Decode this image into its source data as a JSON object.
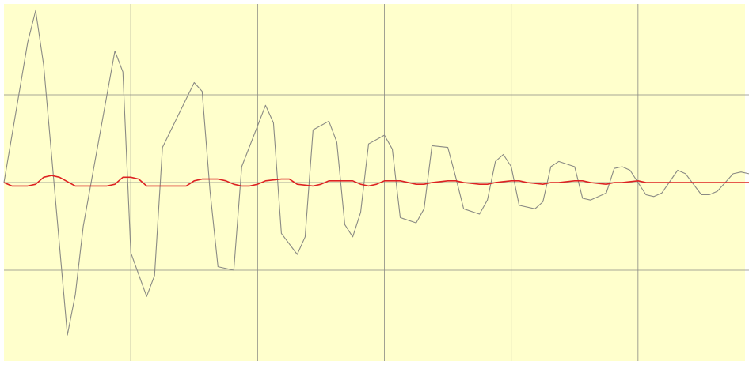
{
  "chart_data": {
    "type": "line",
    "title": "",
    "xlabel": "",
    "ylabel": "",
    "xlim": [
      0,
      94
    ],
    "ylim": [
      -1.0,
      1.0
    ],
    "grid": true,
    "legend": "none",
    "colors": {
      "background": "#ffffcc",
      "grid": "#8a8a84",
      "series": [
        "#8a8a84",
        "#dd2222"
      ]
    },
    "series": [
      {
        "x": [
          0,
          3,
          4,
          5,
          8,
          9,
          10,
          14,
          15,
          16,
          18,
          19,
          20,
          24,
          25,
          26,
          27,
          29,
          30,
          33,
          34,
          35,
          37,
          38,
          39,
          41,
          42,
          43,
          44,
          45,
          46,
          48,
          49,
          50,
          52,
          53,
          54,
          56,
          57,
          58,
          60,
          61,
          62,
          63,
          64,
          65,
          67,
          68,
          69,
          70,
          72,
          73,
          74,
          76,
          77,
          78,
          79,
          81,
          82,
          83,
          85,
          86,
          88,
          89,
          90,
          92,
          93,
          94
        ],
        "values": [
          0.0,
          0.8,
          0.98,
          0.67,
          -0.87,
          -0.64,
          -0.25,
          0.75,
          0.63,
          -0.4,
          -0.65,
          -0.53,
          0.2,
          0.57,
          0.52,
          -0.05,
          -0.48,
          -0.5,
          0.09,
          0.44,
          0.34,
          -0.29,
          -0.41,
          -0.31,
          0.3,
          0.35,
          0.23,
          -0.24,
          -0.31,
          -0.17,
          0.22,
          0.27,
          0.19,
          -0.2,
          -0.23,
          -0.15,
          0.21,
          0.2,
          0.03,
          -0.15,
          -0.18,
          -0.1,
          0.12,
          0.16,
          0.09,
          -0.13,
          -0.15,
          -0.11,
          0.09,
          0.12,
          0.09,
          -0.09,
          -0.1,
          -0.06,
          0.08,
          0.09,
          0.07,
          -0.07,
          -0.08,
          -0.06,
          0.07,
          0.05,
          -0.07,
          -0.07,
          -0.05,
          0.05,
          0.06,
          0.05
        ]
      },
      {
        "x": [
          0,
          1,
          3,
          4,
          5,
          6,
          7,
          9,
          10,
          13,
          14,
          15,
          16,
          17,
          18,
          19,
          20,
          23,
          24,
          25,
          27,
          28,
          29,
          30,
          31,
          32,
          33,
          35,
          36,
          37,
          39,
          40,
          41,
          43,
          44,
          45,
          46,
          47,
          48,
          49,
          50,
          52,
          53,
          54,
          56,
          57,
          58,
          60,
          61,
          62,
          64,
          65,
          66,
          68,
          69,
          70,
          72,
          73,
          74,
          76,
          77,
          78,
          80,
          81,
          82,
          84,
          85,
          86,
          88,
          89,
          90,
          92,
          94
        ],
        "values": [
          0.0,
          -0.02,
          -0.02,
          -0.01,
          0.03,
          0.04,
          0.03,
          -0.02,
          -0.02,
          -0.02,
          -0.01,
          0.03,
          0.03,
          0.02,
          -0.02,
          -0.02,
          -0.02,
          -0.02,
          0.01,
          0.02,
          0.02,
          0.01,
          -0.01,
          -0.02,
          -0.02,
          -0.01,
          0.01,
          0.02,
          0.02,
          -0.01,
          -0.02,
          -0.01,
          0.01,
          0.01,
          0.01,
          -0.01,
          -0.02,
          -0.01,
          0.01,
          0.01,
          0.01,
          -0.01,
          -0.01,
          0.0,
          0.01,
          0.01,
          0.0,
          -0.01,
          -0.01,
          0.0,
          0.01,
          0.01,
          0.0,
          -0.01,
          0.0,
          0.0,
          0.01,
          0.01,
          0.0,
          -0.01,
          0.0,
          0.0,
          0.01,
          0.0,
          0.0,
          0.0,
          0.0,
          0.0,
          0.0,
          0.0,
          0.0,
          0.0,
          0.0
        ]
      }
    ]
  }
}
